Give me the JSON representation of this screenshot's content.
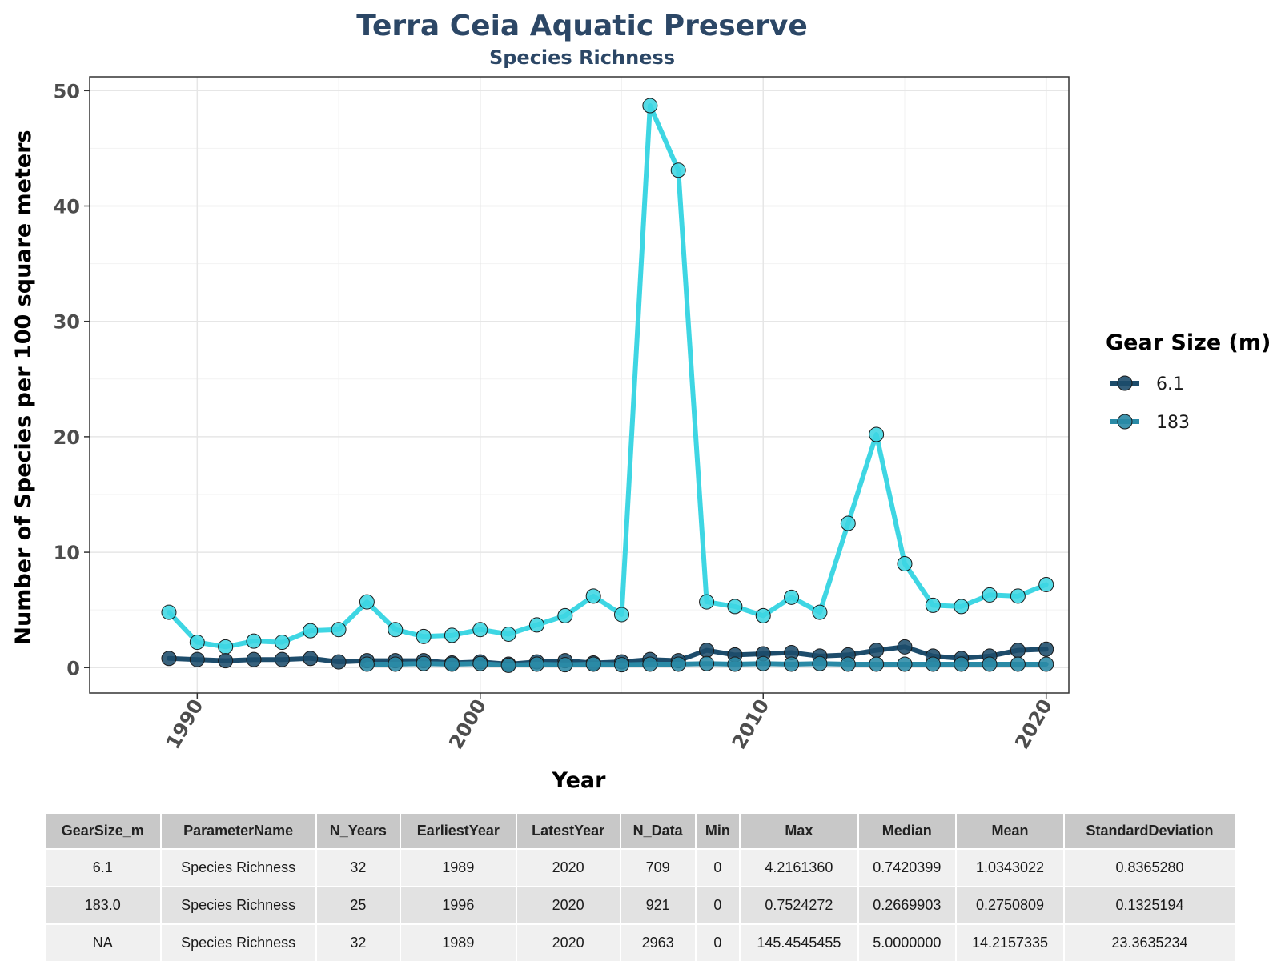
{
  "chart_data": {
    "type": "line",
    "title": "Terra Ceia Aquatic Preserve",
    "subtitle": "Species Richness",
    "xlabel": "Year",
    "ylabel": "Number of Species per 100 square meters",
    "xlim": [
      1986.2,
      2020.8
    ],
    "ylim": [
      -2.2,
      51.2
    ],
    "x_ticks": [
      1990,
      2000,
      2010,
      2020
    ],
    "y_ticks": [
      0,
      10,
      20,
      30,
      40,
      50
    ],
    "grid": true,
    "legend": {
      "title": "Gear Size (m)",
      "placement": "right"
    },
    "series": [
      {
        "id": "all",
        "color": "#3ed6e3",
        "x": [
          1989,
          1990,
          1991,
          1992,
          1993,
          1994,
          1995,
          1996,
          1997,
          1998,
          1999,
          2000,
          2001,
          2002,
          2003,
          2004,
          2005,
          2006,
          2007,
          2008,
          2009,
          2010,
          2011,
          2012,
          2013,
          2014,
          2015,
          2016,
          2017,
          2018,
          2019,
          2020
        ],
        "y": [
          4.8,
          2.2,
          1.8,
          2.3,
          2.2,
          3.2,
          3.3,
          5.7,
          3.3,
          2.7,
          2.8,
          3.3,
          2.9,
          3.7,
          4.5,
          6.2,
          4.6,
          48.7,
          43.1,
          5.7,
          5.3,
          4.5,
          6.1,
          4.8,
          12.5,
          20.2,
          9.0,
          5.4,
          5.3,
          6.3,
          6.2,
          7.2
        ]
      },
      {
        "id": "gear-6-1",
        "name": "6.1",
        "color": "#1d4c6b",
        "x": [
          1989,
          1990,
          1991,
          1992,
          1993,
          1994,
          1995,
          1996,
          1997,
          1998,
          1999,
          2000,
          2001,
          2002,
          2003,
          2004,
          2005,
          2006,
          2007,
          2008,
          2009,
          2010,
          2011,
          2012,
          2013,
          2014,
          2015,
          2016,
          2017,
          2018,
          2019,
          2020
        ],
        "y": [
          0.8,
          0.7,
          0.6,
          0.7,
          0.7,
          0.8,
          0.5,
          0.6,
          0.6,
          0.6,
          0.4,
          0.5,
          0.3,
          0.5,
          0.6,
          0.4,
          0.5,
          0.7,
          0.6,
          1.5,
          1.1,
          1.2,
          1.3,
          1.0,
          1.1,
          1.5,
          1.8,
          1.0,
          0.8,
          1.0,
          1.5,
          1.6
        ]
      },
      {
        "id": "gear-183",
        "name": "183",
        "color": "#2a8aa6",
        "x": [
          1996,
          1997,
          1998,
          1999,
          2000,
          2001,
          2002,
          2003,
          2004,
          2005,
          2006,
          2007,
          2008,
          2009,
          2010,
          2011,
          2012,
          2013,
          2014,
          2015,
          2016,
          2017,
          2018,
          2019,
          2020
        ],
        "y": [
          0.3,
          0.3,
          0.35,
          0.3,
          0.35,
          0.2,
          0.3,
          0.25,
          0.3,
          0.25,
          0.3,
          0.3,
          0.35,
          0.3,
          0.35,
          0.3,
          0.35,
          0.3,
          0.3,
          0.3,
          0.3,
          0.3,
          0.3,
          0.3,
          0.3
        ]
      }
    ]
  },
  "table": {
    "headers": [
      "GearSize_m",
      "ParameterName",
      "N_Years",
      "EarliestYear",
      "LatestYear",
      "N_Data",
      "Min",
      "Max",
      "Median",
      "Mean",
      "StandardDeviation"
    ],
    "rows": [
      [
        "6.1",
        "Species Richness",
        "32",
        "1989",
        "2020",
        "709",
        "0",
        "4.2161360",
        "0.7420399",
        "1.0343022",
        "0.8365280"
      ],
      [
        "183.0",
        "Species Richness",
        "25",
        "1996",
        "2020",
        "921",
        "0",
        "0.7524272",
        "0.2669903",
        "0.2750809",
        "0.1325194"
      ],
      [
        "NA",
        "Species Richness",
        "32",
        "1989",
        "2020",
        "2963",
        "0",
        "145.4545455",
        "5.0000000",
        "14.2157335",
        "23.3635234"
      ]
    ]
  }
}
